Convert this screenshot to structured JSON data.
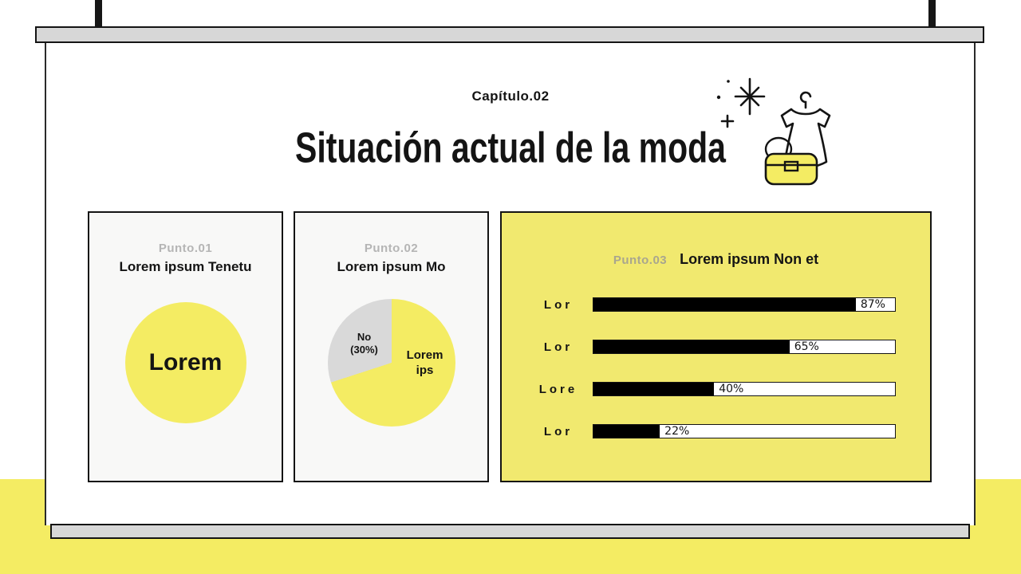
{
  "slide": {
    "chapter": "Capítulo.02",
    "title": "Situación actual de la moda"
  },
  "panels": {
    "punto1": {
      "label": "Punto.01",
      "heading": "Lorem ipsum Tenetu",
      "circle_text": "Lorem"
    },
    "punto2": {
      "label": "Punto.02",
      "heading": "Lorem ipsum Mo",
      "pie": {
        "yellow_pct": 70,
        "gray_pct": 30,
        "gray_label": "No\n(30%)",
        "yellow_label": "Lorem\nips"
      }
    },
    "punto3": {
      "label": "Punto.03",
      "heading": "Lorem ipsum Non et",
      "bars": [
        {
          "label": "Lor",
          "value": 87,
          "display": "87%"
        },
        {
          "label": "Lor",
          "value": 65,
          "display": "65%"
        },
        {
          "label": "Lore",
          "value": 40,
          "display": "40%"
        },
        {
          "label": "Lor",
          "value": 22,
          "display": "22%"
        }
      ]
    }
  },
  "chart_data": [
    {
      "type": "pie",
      "title": "Lorem ipsum Mo",
      "labels": [
        "Lorem ips",
        "No (30%)"
      ],
      "values": [
        70,
        30
      ],
      "colors": [
        "#f4ec63",
        "#d9d9d9"
      ]
    },
    {
      "type": "bar",
      "orientation": "horizontal",
      "title": "Lorem ipsum Non et",
      "categories": [
        "Lor",
        "Lor",
        "Lore",
        "Lor"
      ],
      "values": [
        87,
        65,
        40,
        22
      ],
      "value_labels": [
        "87%",
        "65%",
        "40%",
        "22%"
      ],
      "xlim": [
        0,
        100
      ],
      "bar_color": "#000000",
      "track_color": "#ffffff"
    }
  ],
  "colors": {
    "accent_yellow": "#f4ec63",
    "panel_yellow": "#f1e96f",
    "gray": "#d9d9d9",
    "ink": "#141414"
  }
}
